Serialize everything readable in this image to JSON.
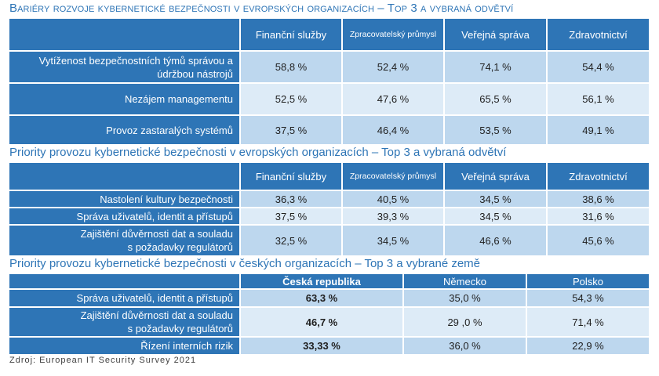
{
  "table1": {
    "title": "Bariéry rozvoje kybernetické bezpečnosti v evropských organizacích – Top 3 a vybraná odvětví",
    "columns": [
      "Finanční služby",
      "Zpracovatelský průmysl",
      "Veřejná správa",
      "Zdravotnictví"
    ],
    "rows": [
      {
        "label_lines": [
          "Vytíženost bezpečnostních týmů správou a",
          "údržbou nástrojů"
        ],
        "values": [
          "58,8 %",
          "52,4 %",
          "74,1 %",
          "54,4 %"
        ]
      },
      {
        "label_lines": [
          "Nezájem managementu"
        ],
        "values": [
          "52,5 %",
          "47,6 %",
          "65,5 %",
          "56,1 %"
        ]
      },
      {
        "label_lines": [
          "Provoz zastaralých systémů"
        ],
        "values": [
          "37,5 %",
          "46,4 %",
          "53,5 %",
          "49,1 %"
        ]
      }
    ]
  },
  "table2": {
    "title": "Priority provozu kybernetické bezpečnosti v evropských organizacích – Top 3 a vybraná odvětví",
    "columns": [
      "Finanční služby",
      "Zpracovatelský průmysl",
      "Veřejná správa",
      "Zdravotnictví"
    ],
    "rows": [
      {
        "label_lines": [
          "Nastolení kultury bezpečnosti"
        ],
        "values": [
          "36,3 %",
          "40,5 %",
          "34,5 %",
          "38,6 %"
        ]
      },
      {
        "label_lines": [
          "Správa uživatelů, identit a přístupů"
        ],
        "values": [
          "37,5 %",
          "39,3 %",
          "34,5 %",
          "31,6 %"
        ]
      },
      {
        "label_lines": [
          "Zajištění důvěrnosti dat a souladu",
          "s požadavky regulátorů"
        ],
        "values": [
          "32,5 %",
          "34,5 %",
          "46,6 %",
          "45,6 %"
        ]
      }
    ]
  },
  "table3": {
    "title": "Priority provozu kybernetické bezpečnosti v českých organizacích – Top 3 a vybrané země",
    "columns": [
      "Česká republika",
      "Německo",
      "Polsko"
    ],
    "rows": [
      {
        "label_lines": [
          "Správa uživatelů, identit a přístupů"
        ],
        "values": [
          "63,3 %",
          "35,0 %",
          "54,3 %"
        ]
      },
      {
        "label_lines": [
          "Zajištění důvěrnosti dat a souladu",
          "s požadavky regulátorů"
        ],
        "values": [
          "46,7 %",
          "29 ,0 %",
          "71,4 %"
        ]
      },
      {
        "label_lines": [
          "Řízení interních rizik"
        ],
        "values": [
          "33,33 %",
          "36,0 %",
          "22,9 %"
        ]
      }
    ]
  },
  "source": "Zdroj: European IT Security Survey 2021",
  "colors": {
    "header_blue": "#2e75b6",
    "cell_light": "#bdd7ee",
    "cell_lighter": "#ddebf7",
    "title_blue": "#2e75b6"
  }
}
